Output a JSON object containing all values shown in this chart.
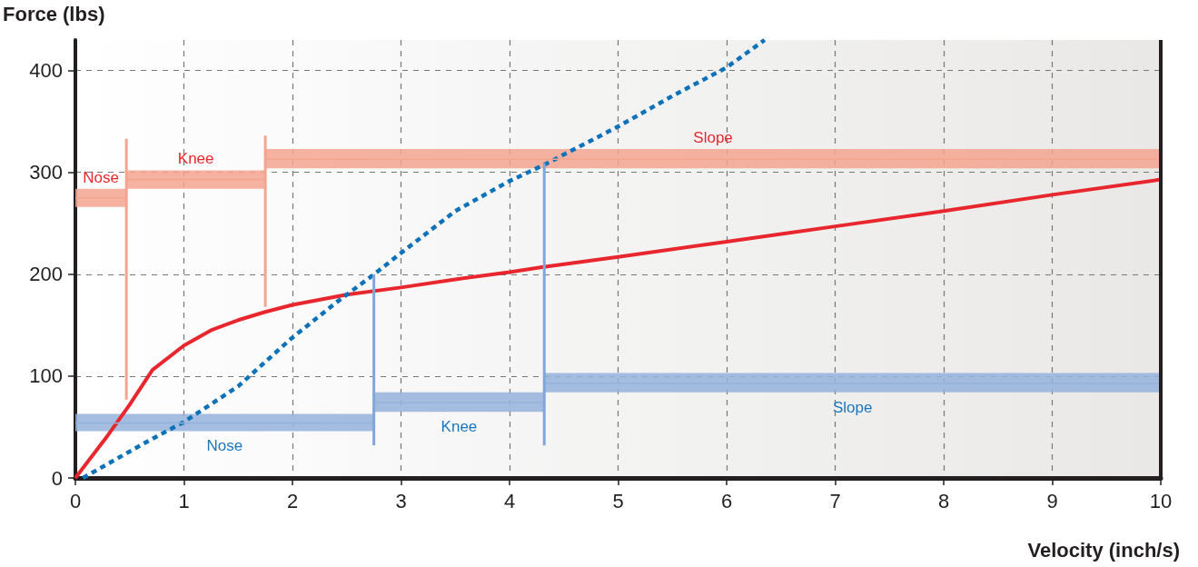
{
  "chart_data": {
    "type": "line",
    "xlabel": "Velocity (inch/s)",
    "ylabel": "Force (lbs)",
    "xlim": [
      0,
      10
    ],
    "xticks": [
      0,
      1,
      2,
      3,
      4,
      5,
      6,
      7,
      8,
      9,
      10
    ],
    "ylim": [
      0,
      430
    ],
    "yticks": [
      0,
      100,
      200,
      300,
      400
    ],
    "grid": true,
    "series": [
      {
        "color": "#e8262d",
        "line_style": "solid",
        "x": [
          0,
          0.3,
          0.5,
          0.71,
          1,
          1.25,
          1.5,
          1.75,
          2,
          2.5,
          3,
          3.5,
          4,
          4.3,
          5,
          6,
          7,
          8,
          9,
          10
        ],
        "values": [
          0,
          42,
          72,
          106,
          130,
          145,
          155,
          163,
          170,
          180,
          187,
          195,
          202,
          207,
          217,
          232,
          247,
          262,
          278,
          293
        ]
      },
      {
        "color": "#0f72b9",
        "line_style": "dashed",
        "x": [
          0.07,
          0.65,
          1,
          1.5,
          1.99,
          2.4,
          2.74,
          2.99,
          3.5,
          3.99,
          4.31,
          5,
          5.5,
          6,
          6.35
        ],
        "values": [
          0,
          35,
          55,
          90,
          137,
          172,
          199,
          220,
          262,
          291,
          307,
          345,
          375,
          403,
          430
        ]
      },
      {
        "name": "Nose",
        "color": "#f4a58f",
        "x": [
          0,
          0.47
        ],
        "values": [
          275,
          275
        ],
        "lower": [
          266,
          266
        ],
        "upper": [
          284,
          284
        ]
      },
      {
        "name": "Knee",
        "color": "#f4a58f",
        "x": [
          0.47,
          1.75
        ],
        "values": [
          293,
          293
        ],
        "lower": [
          284,
          284
        ],
        "upper": [
          302,
          302
        ]
      },
      {
        "name": "Slope",
        "color": "#f4a58f",
        "x": [
          1.75,
          10
        ],
        "values": [
          313,
          313
        ],
        "lower": [
          304,
          304
        ],
        "upper": [
          323,
          323
        ]
      },
      {
        "name": "Nose",
        "color": "#94b2dc",
        "x": [
          0,
          2.75
        ],
        "values": [
          54,
          54
        ],
        "lower": [
          46,
          46
        ],
        "upper": [
          63,
          63
        ]
      },
      {
        "name": "Knee",
        "color": "#94b2dc",
        "x": [
          2.75,
          4.32
        ],
        "values": [
          74,
          74
        ],
        "lower": [
          65,
          65
        ],
        "upper": [
          84,
          84
        ]
      },
      {
        "name": "Slope",
        "color": "#94b2dc",
        "x": [
          4.32,
          10
        ],
        "values": [
          93,
          93
        ],
        "lower": [
          84,
          84
        ],
        "upper": [
          103,
          103
        ]
      },
      {
        "color": "#f4a58f",
        "x": [
          0.47,
          0.47
        ],
        "values": [
          77,
          333
        ]
      },
      {
        "color": "#f4a58f",
        "x": [
          1.75,
          1.75
        ],
        "values": [
          168,
          336
        ]
      },
      {
        "color": "#82a6d8",
        "x": [
          2.75,
          2.75
        ],
        "values": [
          32,
          200
        ]
      },
      {
        "color": "#82a6d8",
        "x": [
          4.32,
          4.32
        ],
        "values": [
          32,
          309
        ]
      }
    ]
  }
}
